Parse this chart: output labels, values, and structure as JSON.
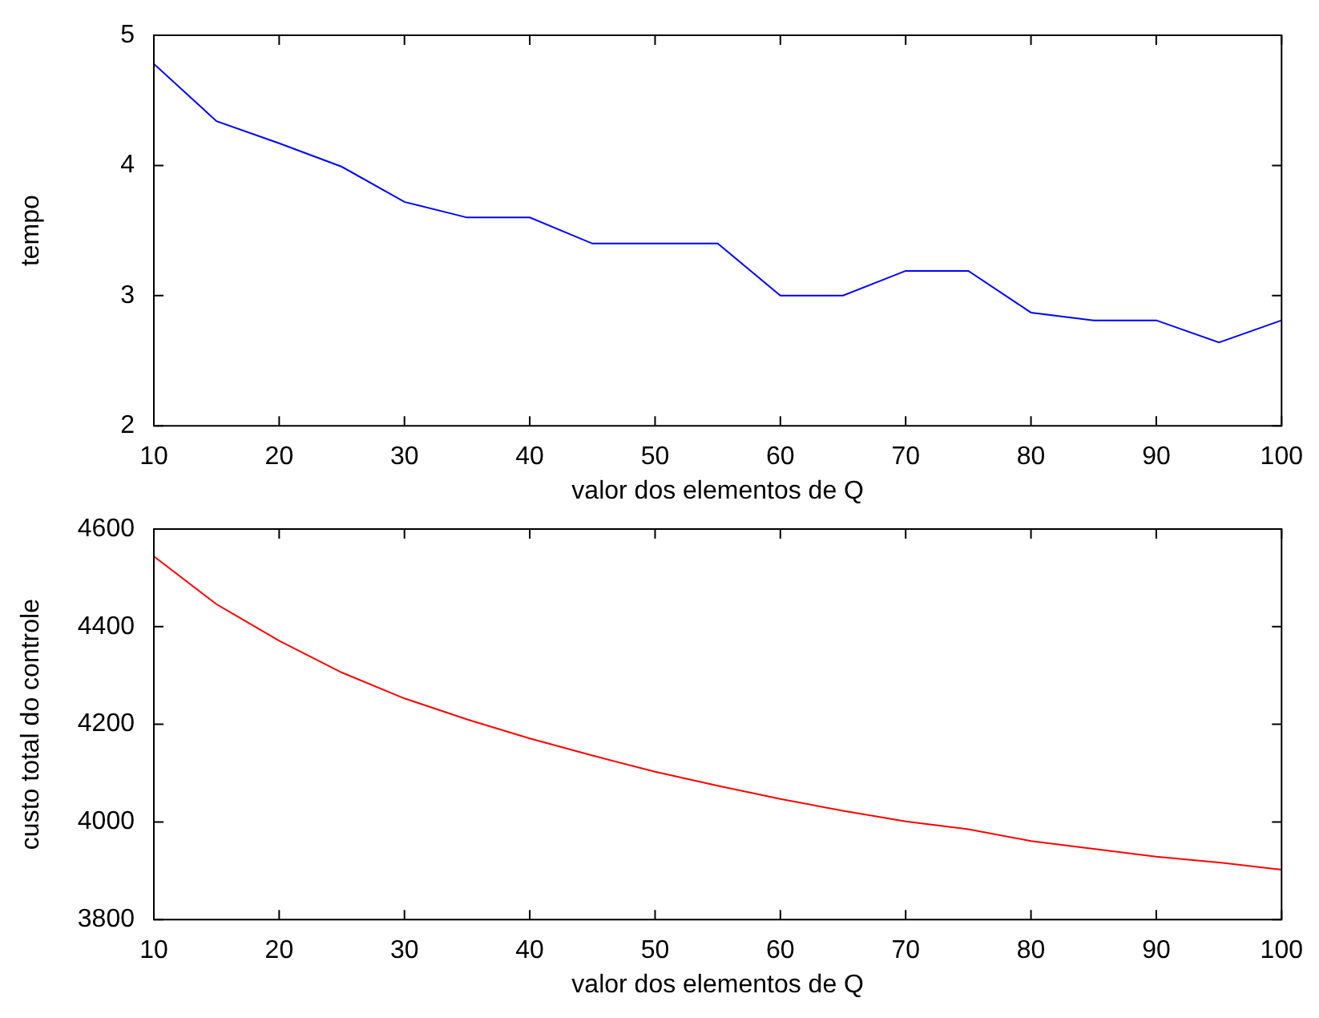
{
  "chart_data": [
    {
      "type": "line",
      "xlabel": "valor dos elementos de Q",
      "ylabel": "tempo",
      "x": [
        10,
        15,
        20,
        25,
        30,
        35,
        40,
        45,
        50,
        55,
        60,
        65,
        70,
        75,
        80,
        85,
        90,
        95,
        100
      ],
      "series": [
        {
          "color": "#0000ff",
          "values": [
            4.78,
            4.34,
            4.17,
            3.99,
            3.72,
            3.6,
            3.6,
            3.4,
            3.4,
            3.4,
            3.0,
            3.0,
            3.19,
            3.19,
            2.87,
            2.81,
            2.81,
            2.64,
            2.81
          ]
        }
      ],
      "xlim": [
        10,
        100
      ],
      "xticks": [
        10,
        20,
        30,
        40,
        50,
        60,
        70,
        80,
        90,
        100
      ],
      "ylim": [
        2,
        5
      ],
      "yticks": [
        2,
        3,
        4,
        5
      ]
    },
    {
      "type": "line",
      "xlabel": "valor dos elementos de Q",
      "ylabel": "custo total do controle",
      "x": [
        10,
        15,
        20,
        25,
        30,
        35,
        40,
        45,
        50,
        55,
        60,
        65,
        70,
        75,
        80,
        85,
        90,
        95,
        100
      ],
      "series": [
        {
          "color": "#ff0000",
          "values": [
            4544,
            4446,
            4371,
            4306,
            4253,
            4210,
            4171,
            4136,
            4103,
            4074,
            4047,
            4023,
            4001,
            3985,
            3961,
            3945,
            3929,
            3917,
            3902
          ]
        }
      ],
      "xlim": [
        10,
        100
      ],
      "xticks": [
        10,
        20,
        30,
        40,
        50,
        60,
        70,
        80,
        90,
        100
      ],
      "ylim": [
        3800,
        4600
      ],
      "yticks": [
        3800,
        4000,
        4200,
        4400,
        4600
      ]
    }
  ]
}
